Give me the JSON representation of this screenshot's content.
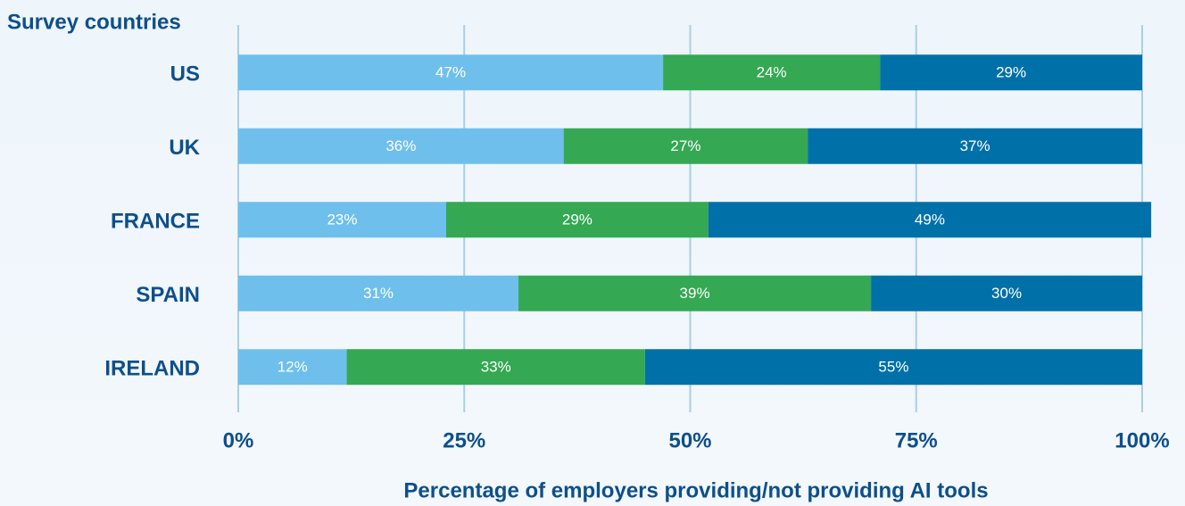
{
  "chart_data": {
    "type": "stacked_barh",
    "ylabel": "Survey countries",
    "xlabel": "Percentage of employers providing/not providing AI tools",
    "categories": [
      "US",
      "UK",
      "FRANCE",
      "SPAIN",
      "IRELAND"
    ],
    "series": [
      {
        "color": "#6fbfec",
        "values": [
          47,
          36,
          23,
          31,
          12
        ],
        "value_labels": [
          "47%",
          "36%",
          "23%",
          "31%",
          "12%"
        ]
      },
      {
        "color": "#34a853",
        "values": [
          24,
          27,
          29,
          39,
          33
        ],
        "value_labels": [
          "24%",
          "27%",
          "29%",
          "39%",
          "33%"
        ]
      },
      {
        "color": "#0071a8",
        "values": [
          29,
          37,
          49,
          30,
          55
        ],
        "value_labels": [
          "29%",
          "37%",
          "49%",
          "30%",
          "55%"
        ]
      }
    ],
    "xlim": [
      0,
      100
    ],
    "xticks": [
      {
        "value": 0,
        "label": "0%"
      },
      {
        "value": 25,
        "label": "25%"
      },
      {
        "value": 50,
        "label": "50%"
      },
      {
        "value": 75,
        "label": "75%"
      },
      {
        "value": 100,
        "label": "100%"
      }
    ],
    "grid": true
  }
}
